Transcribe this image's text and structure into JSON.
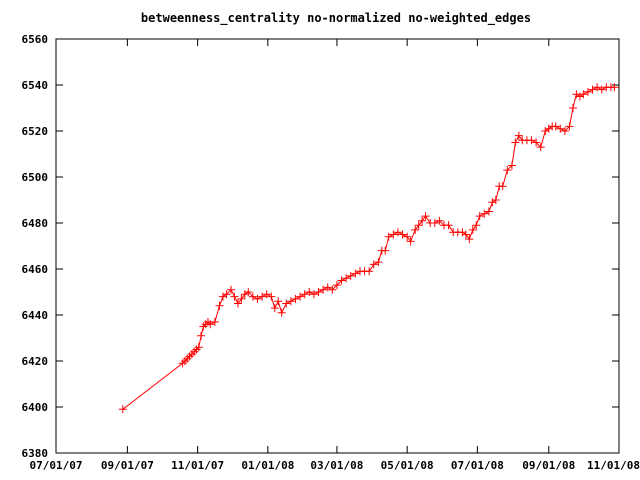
{
  "chart_data": {
    "type": "line",
    "title": "betweenness_centrality no-normalized no-weighted_edges",
    "xlabel": "",
    "ylabel": "",
    "ylim": [
      6380,
      6560
    ],
    "xlim": [
      "2007-07-01",
      "2008-11-01"
    ],
    "grid": false,
    "legend": "none",
    "marker": "plus",
    "color": "#ff0000",
    "y_ticks": [
      6380,
      6400,
      6420,
      6440,
      6460,
      6480,
      6500,
      6520,
      6540,
      6560
    ],
    "x_ticks": [
      {
        "date": "2007-07-01",
        "label": "07/01/07"
      },
      {
        "date": "2007-09-01",
        "label": "09/01/07"
      },
      {
        "date": "2007-11-01",
        "label": "11/01/07"
      },
      {
        "date": "2008-01-01",
        "label": "01/01/08"
      },
      {
        "date": "2008-03-01",
        "label": "03/01/08"
      },
      {
        "date": "2008-05-01",
        "label": "05/01/08"
      },
      {
        "date": "2008-07-01",
        "label": "07/01/08"
      },
      {
        "date": "2008-09-01",
        "label": "09/01/08"
      },
      {
        "date": "2008-11-01",
        "label": "11/01/08"
      }
    ],
    "series": [
      {
        "x": [
          "2007-08-28",
          "2007-10-19",
          "2007-10-21",
          "2007-10-23",
          "2007-10-25",
          "2007-10-27",
          "2007-10-29",
          "2007-10-31",
          "2007-11-02",
          "2007-11-04",
          "2007-11-06",
          "2007-11-08",
          "2007-11-10",
          "2007-11-12",
          "2007-11-16",
          "2007-11-20",
          "2007-11-23",
          "2007-11-26",
          "2007-11-30",
          "2007-12-03",
          "2007-12-06",
          "2007-12-09",
          "2007-12-12",
          "2007-12-15",
          "2007-12-19",
          "2007-12-23",
          "2007-12-27",
          "2007-12-31",
          "2008-01-04",
          "2008-01-07",
          "2008-01-10",
          "2008-01-13",
          "2008-01-17",
          "2008-01-21",
          "2008-01-25",
          "2008-01-29",
          "2008-02-02",
          "2008-02-06",
          "2008-02-10",
          "2008-02-14",
          "2008-02-18",
          "2008-02-22",
          "2008-02-26",
          "2008-03-01",
          "2008-03-05",
          "2008-03-09",
          "2008-03-13",
          "2008-03-17",
          "2008-03-21",
          "2008-03-25",
          "2008-03-29",
          "2008-04-02",
          "2008-04-06",
          "2008-04-09",
          "2008-04-12",
          "2008-04-15",
          "2008-04-19",
          "2008-04-23",
          "2008-04-27",
          "2008-05-01",
          "2008-05-04",
          "2008-05-08",
          "2008-05-11",
          "2008-05-14",
          "2008-05-17",
          "2008-05-21",
          "2008-05-25",
          "2008-05-29",
          "2008-06-02",
          "2008-06-06",
          "2008-06-10",
          "2008-06-14",
          "2008-06-18",
          "2008-06-21",
          "2008-06-24",
          "2008-06-27",
          "2008-06-30",
          "2008-07-03",
          "2008-07-07",
          "2008-07-11",
          "2008-07-14",
          "2008-07-17",
          "2008-07-20",
          "2008-07-23",
          "2008-07-27",
          "2008-07-31",
          "2008-08-03",
          "2008-08-06",
          "2008-08-09",
          "2008-08-13",
          "2008-08-17",
          "2008-08-21",
          "2008-08-25",
          "2008-08-29",
          "2008-09-01",
          "2008-09-04",
          "2008-09-07",
          "2008-09-11",
          "2008-09-15",
          "2008-09-19",
          "2008-09-22",
          "2008-09-25",
          "2008-09-28",
          "2008-10-01",
          "2008-10-05",
          "2008-10-09",
          "2008-10-13",
          "2008-10-17",
          "2008-10-21",
          "2008-10-25",
          "2008-10-28"
        ],
        "values": [
          6399,
          6419,
          6420,
          6421,
          6422,
          6423,
          6424,
          6425,
          6426,
          6431,
          6435,
          6436,
          6437,
          6436,
          6437,
          6444,
          6448,
          6449,
          6451,
          6448,
          6445,
          6447,
          6449,
          6450,
          6448,
          6447,
          6448,
          6449,
          6448,
          6443,
          6446,
          6441,
          6445,
          6446,
          6447,
          6448,
          6449,
          6450,
          6449,
          6450,
          6451,
          6452,
          6451,
          6453,
          6455,
          6456,
          6457,
          6458,
          6459,
          6459,
          6459,
          6462,
          6463,
          6468,
          6468,
          6474,
          6475,
          6476,
          6475,
          6474,
          6472,
          6477,
          6479,
          6481,
          6483,
          6480,
          6480,
          6481,
          6479,
          6479,
          6476,
          6476,
          6476,
          6475,
          6473,
          6477,
          6479,
          6483,
          6484,
          6485,
          6489,
          6490,
          6496,
          6496,
          6503,
          6505,
          6515,
          6518,
          6516,
          6516,
          6516,
          6515,
          6513,
          6520,
          6521,
          6522,
          6522,
          6521,
          6520,
          6522,
          6530,
          6536,
          6535,
          6536,
          6537,
          6538,
          6539,
          6538,
          6539,
          6539,
          6539
        ]
      }
    ]
  }
}
